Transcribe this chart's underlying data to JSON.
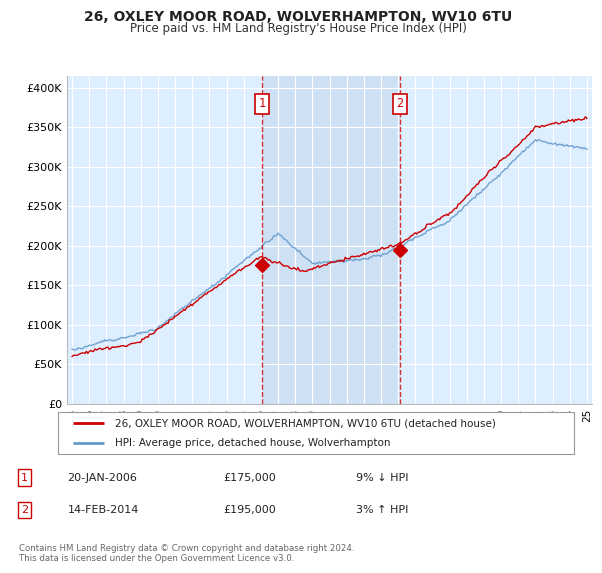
{
  "title1": "26, OXLEY MOOR ROAD, WOLVERHAMPTON, WV10 6TU",
  "title2": "Price paid vs. HM Land Registry's House Price Index (HPI)",
  "ylabel_ticks": [
    "£0",
    "£50K",
    "£100K",
    "£150K",
    "£200K",
    "£250K",
    "£300K",
    "£350K",
    "£400K"
  ],
  "ytick_values": [
    0,
    50000,
    100000,
    150000,
    200000,
    250000,
    300000,
    350000,
    400000
  ],
  "ylim": [
    0,
    415000
  ],
  "xlim_start": 1994.7,
  "xlim_end": 2025.3,
  "background_color": "#ffffff",
  "plot_bg_color": "#ddeeff",
  "shade_color": "#c8dcf0",
  "grid_color": "#ffffff",
  "sale1_x": 2006.05,
  "sale1_y": 175000,
  "sale2_x": 2014.12,
  "sale2_y": 195000,
  "vline_color": "#cc0000",
  "marker_color": "#cc0000",
  "hpi_line_color": "#6699cc",
  "price_line_color": "#cc0000",
  "legend_label1": "26, OXLEY MOOR ROAD, WOLVERHAMPTON, WV10 6TU (detached house)",
  "legend_label2": "HPI: Average price, detached house, Wolverhampton",
  "annotation1_label": "1",
  "annotation2_label": "2",
  "table_row1": [
    "1",
    "20-JAN-2006",
    "£175,000",
    "9% ↓ HPI"
  ],
  "table_row2": [
    "2",
    "14-FEB-2014",
    "£195,000",
    "3% ↑ HPI"
  ],
  "footer": "Contains HM Land Registry data © Crown copyright and database right 2024.\nThis data is licensed under the Open Government Licence v3.0.",
  "xtick_years": [
    1995,
    1996,
    1997,
    1998,
    1999,
    2000,
    2001,
    2002,
    2003,
    2004,
    2005,
    2006,
    2007,
    2008,
    2009,
    2010,
    2011,
    2012,
    2013,
    2014,
    2015,
    2016,
    2017,
    2018,
    2019,
    2020,
    2021,
    2022,
    2023,
    2024,
    2025
  ]
}
